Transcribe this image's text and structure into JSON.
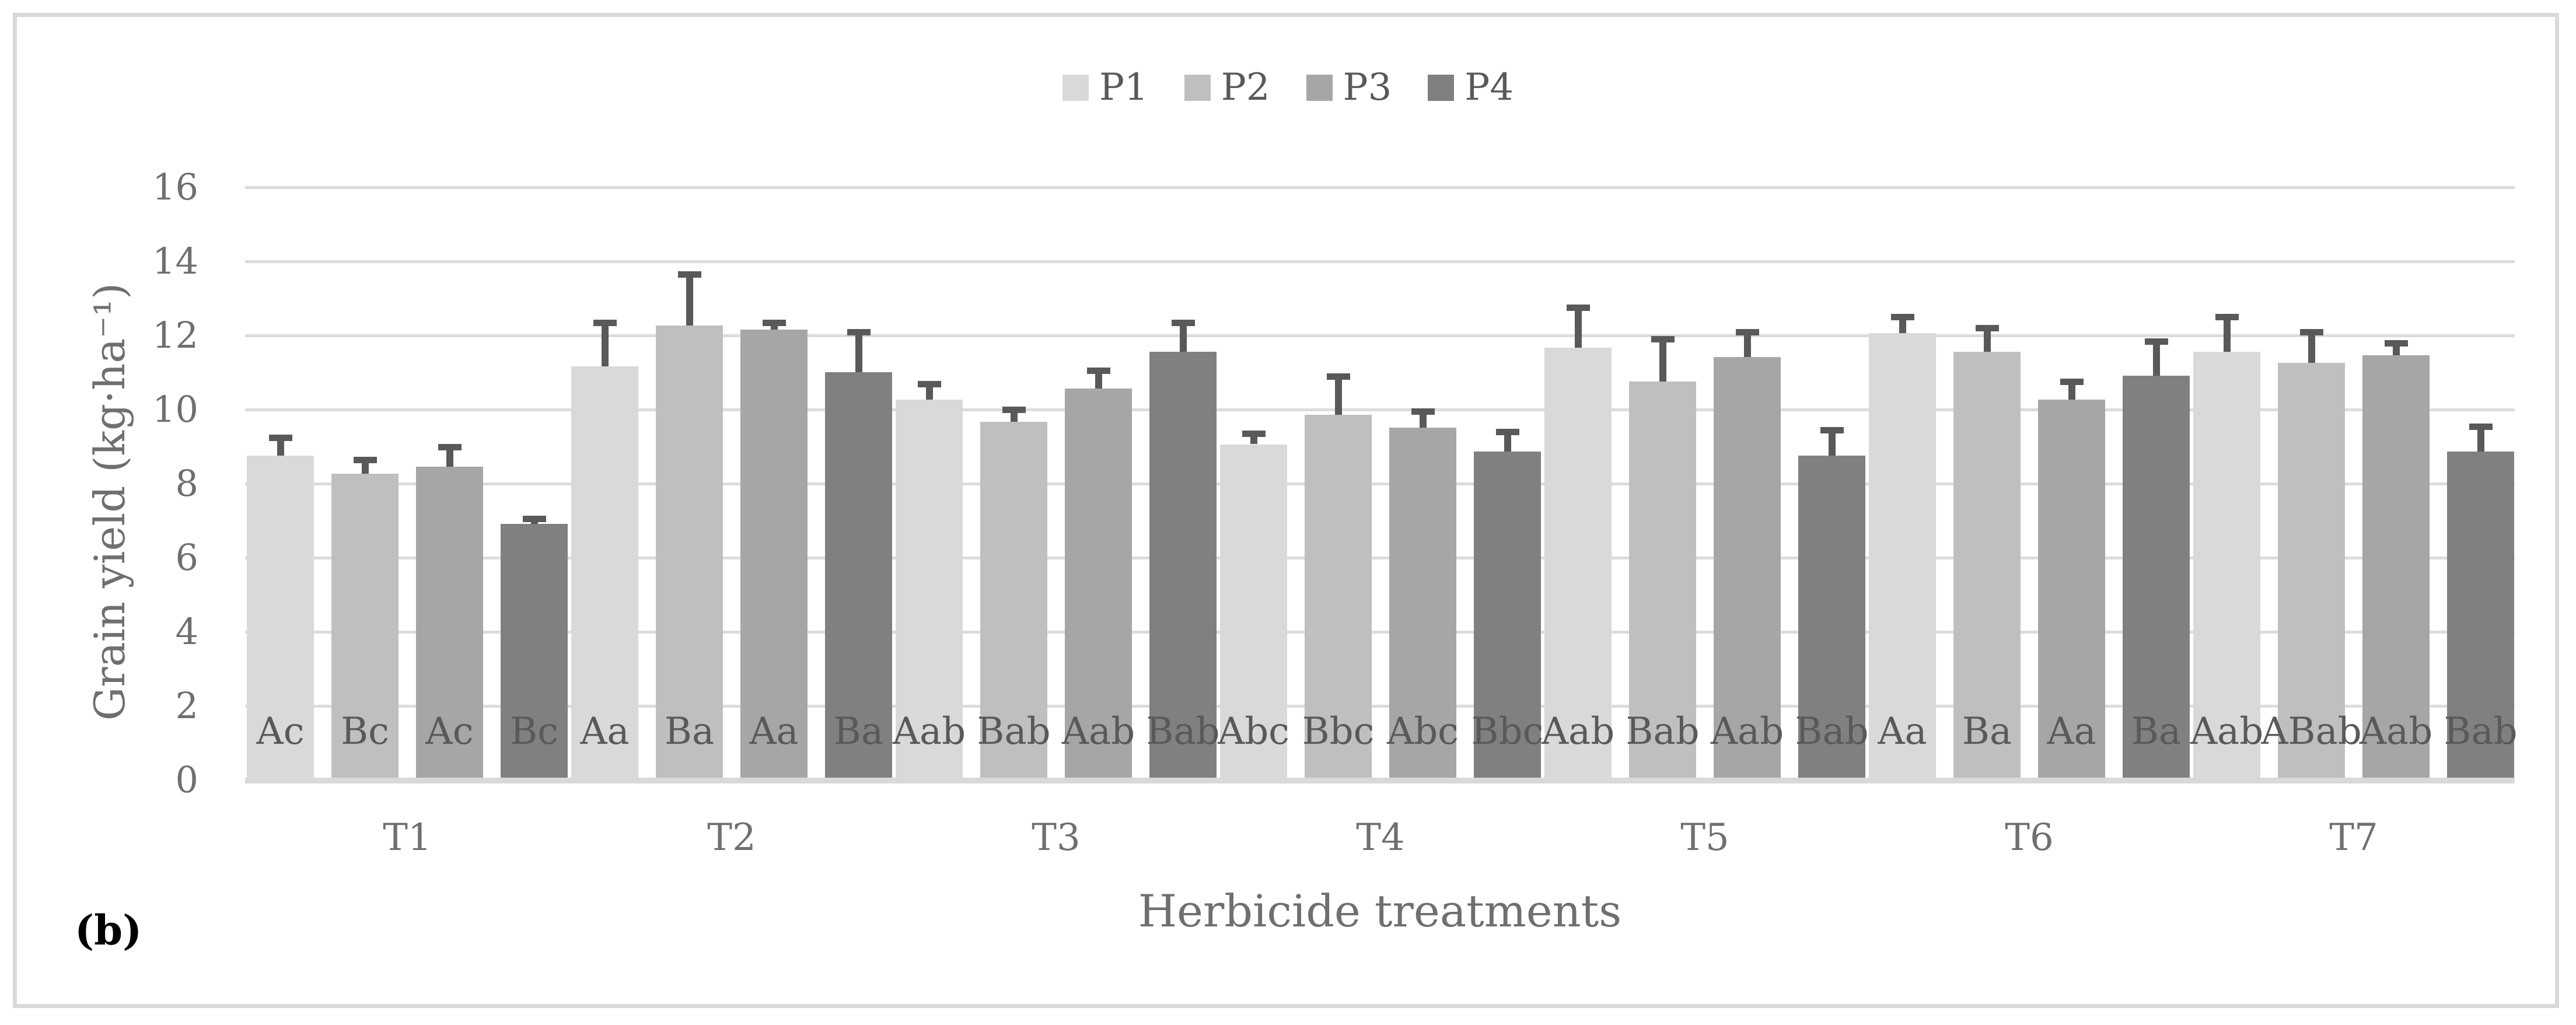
{
  "panel_label": "(b)",
  "chart_data": {
    "type": "bar",
    "title": "",
    "xlabel": "Herbicide treatments",
    "ylabel": "Grain yield (kg·ha⁻¹)",
    "ylim": [
      0,
      16
    ],
    "yticks": [
      0,
      2,
      4,
      6,
      8,
      10,
      12,
      14,
      16
    ],
    "grid": true,
    "legend_position": "top-center",
    "categories": [
      "T1",
      "T2",
      "T3",
      "T4",
      "T5",
      "T6",
      "T7"
    ],
    "series": [
      {
        "name": "P1",
        "color": "#d9d9d9",
        "values": [
          8.7,
          11.1,
          10.2,
          9.0,
          11.6,
          12.0,
          11.5
        ],
        "errors": [
          0.55,
          1.25,
          0.5,
          0.35,
          1.15,
          0.5,
          1.0
        ],
        "letters": [
          "Ac",
          "Aa",
          "Aab",
          "Abc",
          "Aab",
          "Aa",
          "Aab"
        ]
      },
      {
        "name": "P2",
        "color": "#bfbfbf",
        "values": [
          8.2,
          12.2,
          9.6,
          9.8,
          10.7,
          11.5,
          11.2
        ],
        "errors": [
          0.45,
          1.45,
          0.4,
          1.1,
          1.2,
          0.7,
          0.9
        ],
        "letters": [
          "Bc",
          "Ba",
          "Bab",
          "Bbc",
          "Bab",
          "Ba",
          "ABab"
        ]
      },
      {
        "name": "P3",
        "color": "#a6a6a6",
        "values": [
          8.4,
          12.1,
          10.5,
          9.45,
          11.35,
          10.2,
          11.4
        ],
        "errors": [
          0.6,
          0.25,
          0.55,
          0.5,
          0.75,
          0.55,
          0.4
        ],
        "letters": [
          "Ac",
          "Aa",
          "Aab",
          "Abc",
          "Aab",
          "Aa",
          "Aab"
        ]
      },
      {
        "name": "P4",
        "color": "#808080",
        "values": [
          6.85,
          10.95,
          11.5,
          8.8,
          8.7,
          10.85,
          8.8
        ],
        "errors": [
          0.2,
          1.15,
          0.85,
          0.6,
          0.75,
          1.0,
          0.75
        ],
        "letters": [
          "Bc",
          "Ba",
          "Bab",
          "Bbc",
          "Bab",
          "Ba",
          "Bab"
        ]
      }
    ],
    "colors": {
      "error_bar": "#595959",
      "letters": "#595959",
      "gridline": "#dcdcdc",
      "axis_line": "#d9d9d9",
      "axis_text": "#6f6f6f",
      "frame": "#d9d9d9"
    }
  }
}
